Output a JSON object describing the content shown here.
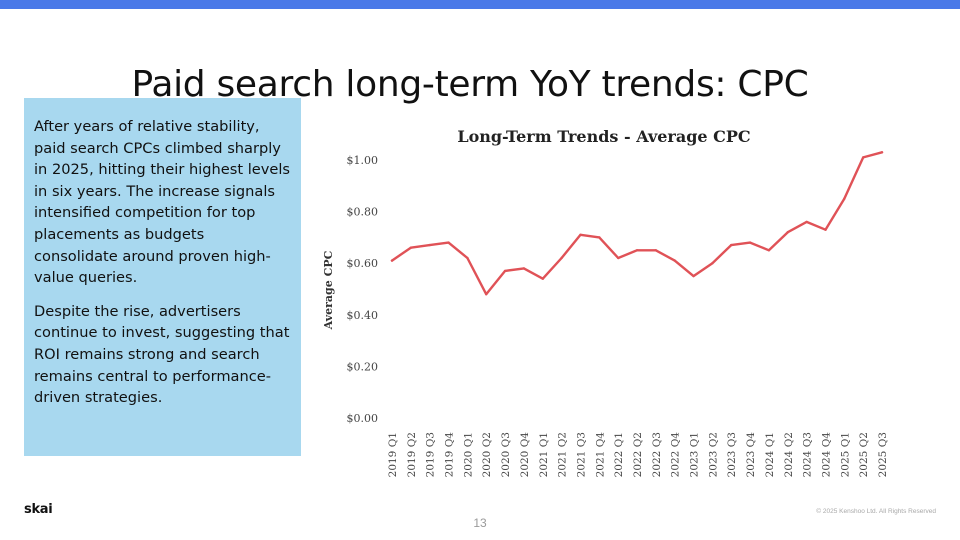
{
  "slide": {
    "title": "Paid search long-term YoY trends: CPC",
    "paragraphs": [
      "After years of relative stability, paid search CPCs climbed sharply in 2025, hitting their highest levels in six years. The increase signals intensified competition for top placements as budgets consolidate around proven high-value queries.",
      "Despite the rise, advertisers continue to invest, suggesting that ROI remains strong and search remains central to performance-driven strategies."
    ],
    "page_number": "13",
    "brand": "skai",
    "copyright": "© 2025 Kenshoo Ltd. All Rights Reserved"
  },
  "colors": {
    "top_bar": "#4a79e8",
    "text_box": "#a8d8ef",
    "line": "#e05257"
  },
  "chart_data": {
    "type": "line",
    "title": "Long-Term Trends - Average CPC",
    "xlabel": "",
    "ylabel": "Average CPC",
    "ylim": [
      0,
      1.0
    ],
    "yticks": [
      0,
      0.2,
      0.4,
      0.6,
      0.8,
      1.0
    ],
    "ytick_labels": [
      "$0.00",
      "$0.20",
      "$0.40",
      "$0.60",
      "$0.80",
      "$1.00"
    ],
    "grid": false,
    "categories": [
      "2019 Q1",
      "2019 Q2",
      "2019 Q3",
      "2019 Q4",
      "2020 Q1",
      "2020 Q2",
      "2020 Q3",
      "2020 Q4",
      "2021 Q1",
      "2021 Q2",
      "2021 Q3",
      "2021 Q4",
      "2022 Q1",
      "2022 Q2",
      "2022 Q3",
      "2022 Q4",
      "2023 Q1",
      "2023 Q2",
      "2023 Q3",
      "2023 Q4",
      "2024 Q1",
      "2024 Q2",
      "2024 Q3",
      "2024 Q4",
      "2025 Q1",
      "2025 Q2",
      "2025 Q3"
    ],
    "values": [
      0.61,
      0.66,
      0.67,
      0.68,
      0.62,
      0.48,
      0.57,
      0.58,
      0.54,
      0.62,
      0.71,
      0.7,
      0.62,
      0.65,
      0.65,
      0.61,
      0.55,
      0.6,
      0.67,
      0.68,
      0.65,
      0.72,
      0.76,
      0.73,
      0.85,
      1.01,
      1.03
    ]
  }
}
